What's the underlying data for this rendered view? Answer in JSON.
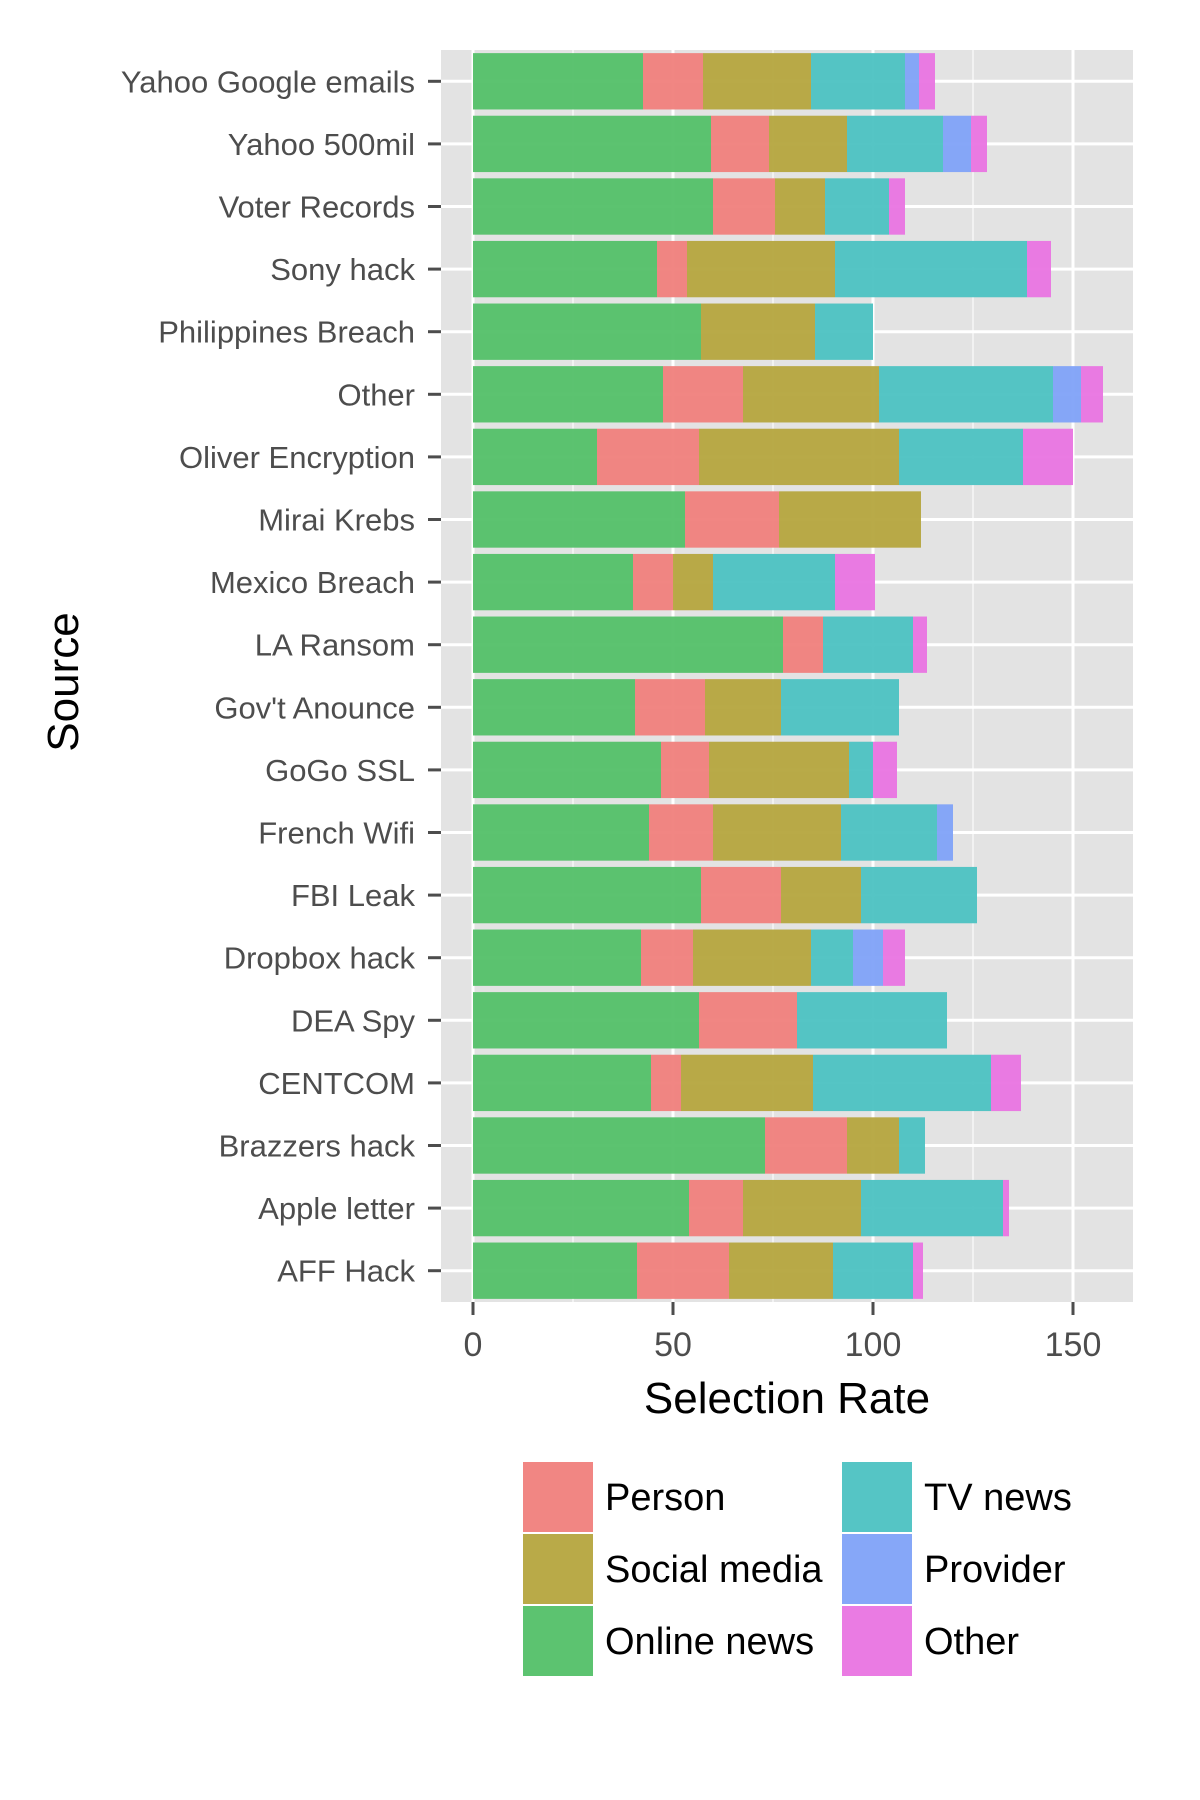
{
  "chart_data": {
    "type": "bar",
    "orientation": "horizontal",
    "stacked": true,
    "title": "",
    "xlabel": "Selection Rate",
    "ylabel": "Source",
    "xlim": [
      -8,
      165
    ],
    "x_ticks": [
      0,
      50,
      100,
      150
    ],
    "grid": true,
    "legend_position": "bottom",
    "categories": [
      "Yahoo Google emails",
      "Yahoo 500mil",
      "Voter Records",
      "Sony hack",
      "Philippines Breach",
      "Other",
      "Oliver Encryption",
      "Mirai Krebs",
      "Mexico Breach",
      "LA Ransom",
      "Gov't Anounce",
      "GoGo SSL",
      "French Wifi",
      "FBI Leak",
      "Dropbox hack",
      "DEA Spy",
      "CENTCOM",
      "Brazzers hack",
      "Apple letter",
      "AFF Hack"
    ],
    "series": [
      {
        "name": "Online news",
        "color": "#53c068",
        "values": [
          42.5,
          59.5,
          60,
          46,
          57,
          47.5,
          31,
          53,
          40,
          77.5,
          40.5,
          47,
          44,
          57,
          42,
          56.5,
          44.5,
          73,
          54,
          41
        ]
      },
      {
        "name": "Person",
        "color": "#f07f7c",
        "values": [
          15,
          14.5,
          15.5,
          7.5,
          0,
          20,
          25.5,
          23.5,
          10,
          10,
          17.5,
          12,
          16,
          20,
          13,
          24.5,
          7.5,
          20.5,
          13.5,
          23
        ]
      },
      {
        "name": "Social media",
        "color": "#b5a53e",
        "values": [
          27,
          19.5,
          12.5,
          37,
          28.5,
          34,
          50,
          35.5,
          10,
          0,
          19,
          35,
          32,
          20,
          29.5,
          0,
          33,
          13,
          29.5,
          26
        ]
      },
      {
        "name": "TV news",
        "color": "#4cc2c2",
        "values": [
          23.5,
          24,
          16,
          48,
          14.5,
          43.5,
          31,
          0,
          30.5,
          22.5,
          29.5,
          6,
          24,
          29,
          10.5,
          37.5,
          44.5,
          6.5,
          35.5,
          20
        ]
      },
      {
        "name": "Provider",
        "color": "#7fa2f8",
        "values": [
          3.5,
          7,
          0,
          0,
          0,
          7,
          0,
          0,
          0,
          0,
          0,
          0,
          4,
          0,
          7.5,
          0,
          0,
          0,
          0,
          0
        ]
      },
      {
        "name": "Other",
        "color": "#e974e1",
        "values": [
          4,
          4,
          4,
          6,
          0,
          5.5,
          12.5,
          0,
          10,
          3.5,
          0,
          6,
          0,
          0,
          5.5,
          0,
          7.5,
          0,
          1.5,
          2.5
        ]
      }
    ],
    "legend": [
      {
        "name": "Person",
        "color": "#f07f7c"
      },
      {
        "name": "Social media",
        "color": "#b5a53e"
      },
      {
        "name": "Online news",
        "color": "#53c068"
      },
      {
        "name": "TV news",
        "color": "#4cc2c2"
      },
      {
        "name": "Provider",
        "color": "#7fa2f8"
      },
      {
        "name": "Other",
        "color": "#e974e1"
      }
    ],
    "panel_background": "#e3e3e3",
    "gridline_color": "#ffffff"
  }
}
